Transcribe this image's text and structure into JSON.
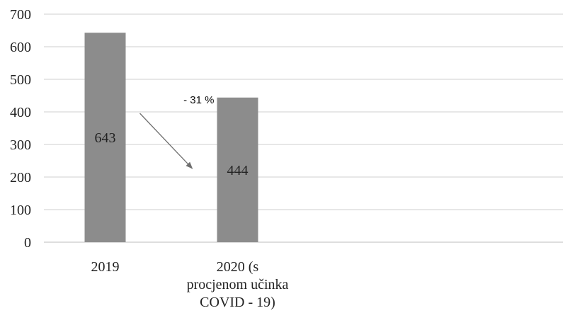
{
  "chart_data": {
    "type": "bar",
    "categories": [
      "2019",
      "2020 (s procjenom učinka COVID - 19)"
    ],
    "category_lines": [
      [
        "2019"
      ],
      [
        "2020 (s",
        "procjenom učinka",
        "COVID - 19)"
      ]
    ],
    "values": [
      643,
      444
    ],
    "data_labels": [
      "643",
      "444"
    ],
    "ylim": [
      0,
      700
    ],
    "yticks": [
      0,
      100,
      200,
      300,
      400,
      500,
      600,
      700
    ],
    "grid": true,
    "bar_color": "#8c8c8c",
    "annotation": {
      "text": "- 31 %",
      "arrow_from": {
        "category": 0,
        "value": 400
      },
      "arrow_to": {
        "category": 1,
        "value": 235
      }
    }
  }
}
